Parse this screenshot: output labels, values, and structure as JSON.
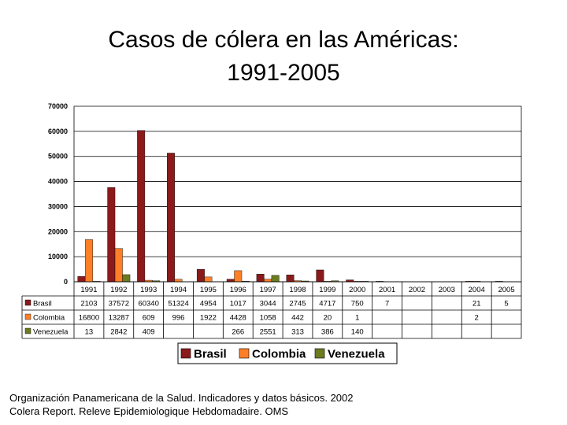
{
  "title_line1": "Casos de cólera en las Américas:",
  "title_line2": "1991-2005",
  "chart_data": {
    "type": "bar",
    "categories": [
      "1991",
      "1992",
      "1993",
      "1994",
      "1995",
      "1996",
      "1997",
      "1998",
      "1999",
      "2000",
      "2001",
      "2002",
      "2003",
      "2004",
      "2005"
    ],
    "series": [
      {
        "name": "Brasil",
        "color": "#8b1a1a",
        "values": [
          2103,
          37572,
          60340,
          51324,
          4954,
          1017,
          3044,
          2745,
          4717,
          750,
          7,
          null,
          null,
          21,
          5
        ],
        "labels": [
          "2103",
          "37572",
          "60340",
          "51324",
          "4954",
          "1017",
          "3044",
          "2745",
          "4717",
          "750",
          "7",
          "",
          "",
          "21",
          "5"
        ]
      },
      {
        "name": "Colombia",
        "color": "#ff7f27",
        "values": [
          16800,
          13287,
          609,
          996,
          1922,
          4428,
          1058,
          442,
          20,
          1,
          null,
          null,
          null,
          2,
          null
        ],
        "labels": [
          "16800",
          "13287",
          "609",
          "996",
          "1922",
          "4428",
          "1058",
          "442",
          "20",
          "1",
          "",
          "",
          "",
          "2",
          ""
        ]
      },
      {
        "name": "Venezuela",
        "color": "#6b7b20",
        "values": [
          13,
          2842,
          409,
          null,
          null,
          266,
          2551,
          313,
          386,
          140,
          null,
          null,
          null,
          null,
          null
        ],
        "labels": [
          "13",
          "2842",
          "409",
          "",
          "",
          "266",
          "2551",
          "313",
          "386",
          "140",
          "",
          "",
          "",
          "",
          ""
        ]
      }
    ],
    "ylim": [
      0,
      70000
    ],
    "yticks": [
      0,
      10000,
      20000,
      30000,
      40000,
      50000,
      60000,
      70000
    ],
    "ytick_labels": [
      "0",
      "10000",
      "20000",
      "30000",
      "40000",
      "50000",
      "60000",
      "70000"
    ],
    "grid": true,
    "legend_position": "bottom",
    "data_table": true
  },
  "source_line1": "Organización Panamericana de la Salud. Indicadores y datos básicos. 2002",
  "source_line2": "Colera Report. Releve Epidemiologique Hebdomadaire. OMS"
}
